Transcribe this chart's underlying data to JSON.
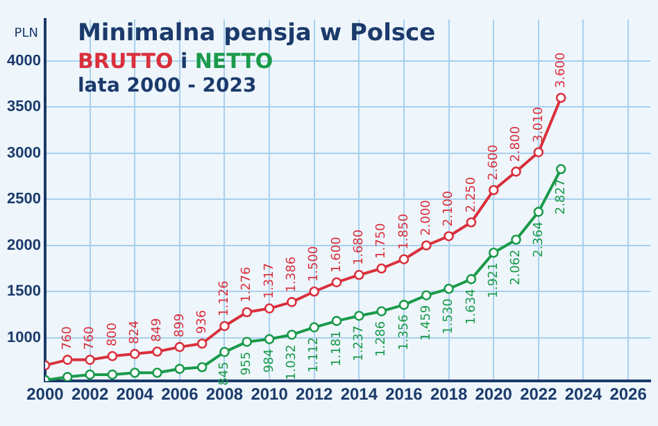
{
  "chart_data": {
    "type": "line",
    "title": "Minimalna pensja w Polsce",
    "subtitle": "lata 2000 - 2023",
    "legend_title": "i",
    "ylabel": "PLN",
    "x": [
      2000,
      2001,
      2002,
      2003,
      2004,
      2005,
      2006,
      2007,
      2008,
      2009,
      2010,
      2011,
      2012,
      2013,
      2014,
      2015,
      2016,
      2017,
      2018,
      2019,
      2020,
      2021,
      2022,
      2023
    ],
    "series": [
      {
        "name": "BRUTTO",
        "color": "#d9303c",
        "values": [
          700,
          760,
          760,
          800,
          824,
          849,
          899,
          936,
          1126,
          1276,
          1317,
          1386,
          1500,
          1600,
          1680,
          1750,
          1850,
          2000,
          2100,
          2250,
          2600,
          2800,
          3010,
          3600
        ],
        "value_labels": [
          null,
          "760",
          "760",
          "800",
          "824",
          "849",
          "899",
          "936",
          "1.126",
          "1.276",
          "1.317",
          "1.386",
          "1.500",
          "1.600",
          "1.680",
          "1.750",
          "1.850",
          "2.000",
          "2.100",
          "2.250",
          "2.600",
          "2.800",
          "3.010",
          "3.600"
        ]
      },
      {
        "name": "NETTO",
        "color": "#1a9a4a",
        "values": [
          540,
          574,
          600,
          600,
          620,
          620,
          662,
          680,
          845,
          955,
          984,
          1032,
          1112,
          1181,
          1237,
          1286,
          1356,
          1459,
          1530,
          1634,
          1921,
          2062,
          2364,
          2827
        ],
        "value_labels": [
          null,
          null,
          null,
          null,
          null,
          null,
          null,
          null,
          "845",
          "955",
          "984",
          "1.032",
          "1.112",
          "1.181",
          "1.237",
          "1.286",
          "1.356",
          "1.459",
          "1.530",
          "1.634",
          "1.921",
          "2.062",
          "2.364",
          "2.827"
        ]
      }
    ],
    "xlim": [
      2000,
      2027
    ],
    "xticks": [
      2000,
      2002,
      2004,
      2006,
      2008,
      2010,
      2012,
      2014,
      2016,
      2018,
      2020,
      2022,
      2024,
      2026
    ],
    "ylim": [
      530,
      4450
    ],
    "yticks": [
      1000,
      1500,
      2000,
      2500,
      3000,
      3500,
      4000
    ],
    "grid": true,
    "legend": "top left",
    "marker": "circle",
    "line_style": "solid"
  }
}
